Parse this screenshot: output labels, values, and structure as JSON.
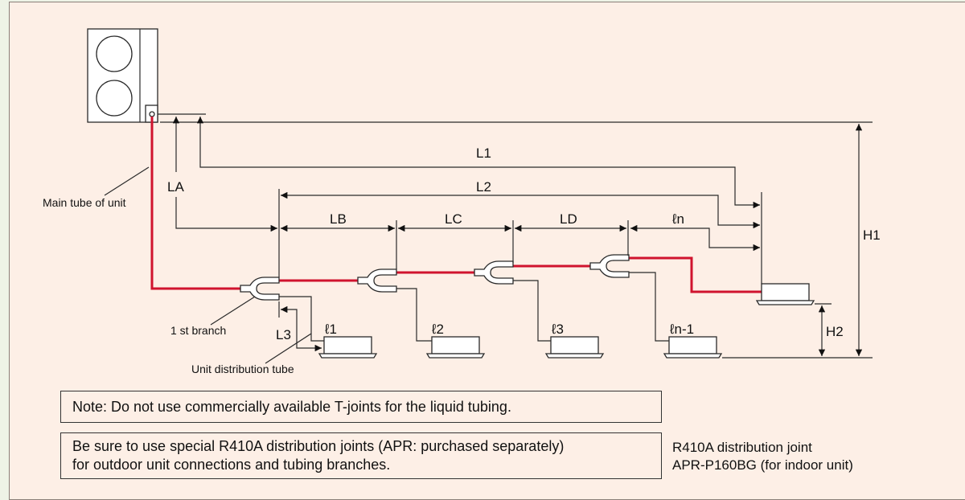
{
  "labels": {
    "LA": "LA",
    "LB": "LB",
    "LC": "LC",
    "LD": "LD",
    "ln": "ℓn",
    "L1": "L1",
    "L2": "L2",
    "L3": "L3",
    "H1": "H1",
    "H2": "H2",
    "l1": "ℓ1",
    "l2": "ℓ2",
    "l3": "ℓ3",
    "ln_1": "ℓn-1",
    "main_tube": "Main tube of unit",
    "first_branch": "1 st branch",
    "unit_distribution_tube": "Unit distribution tube"
  },
  "notes": {
    "note1": "Note: Do not use commercially available T-joints for the liquid tubing.",
    "note2_line1": "Be sure to use special R410A distribution joints (APR: purchased separately)",
    "note2_line2": "for outdoor unit connections and tubing branches."
  },
  "side_caption": {
    "line1": "R410A distribution joint",
    "line2": "APR-P160BG (for indoor unit)"
  },
  "colors": {
    "tube": "#d0132e",
    "background": "#fdefe6"
  }
}
